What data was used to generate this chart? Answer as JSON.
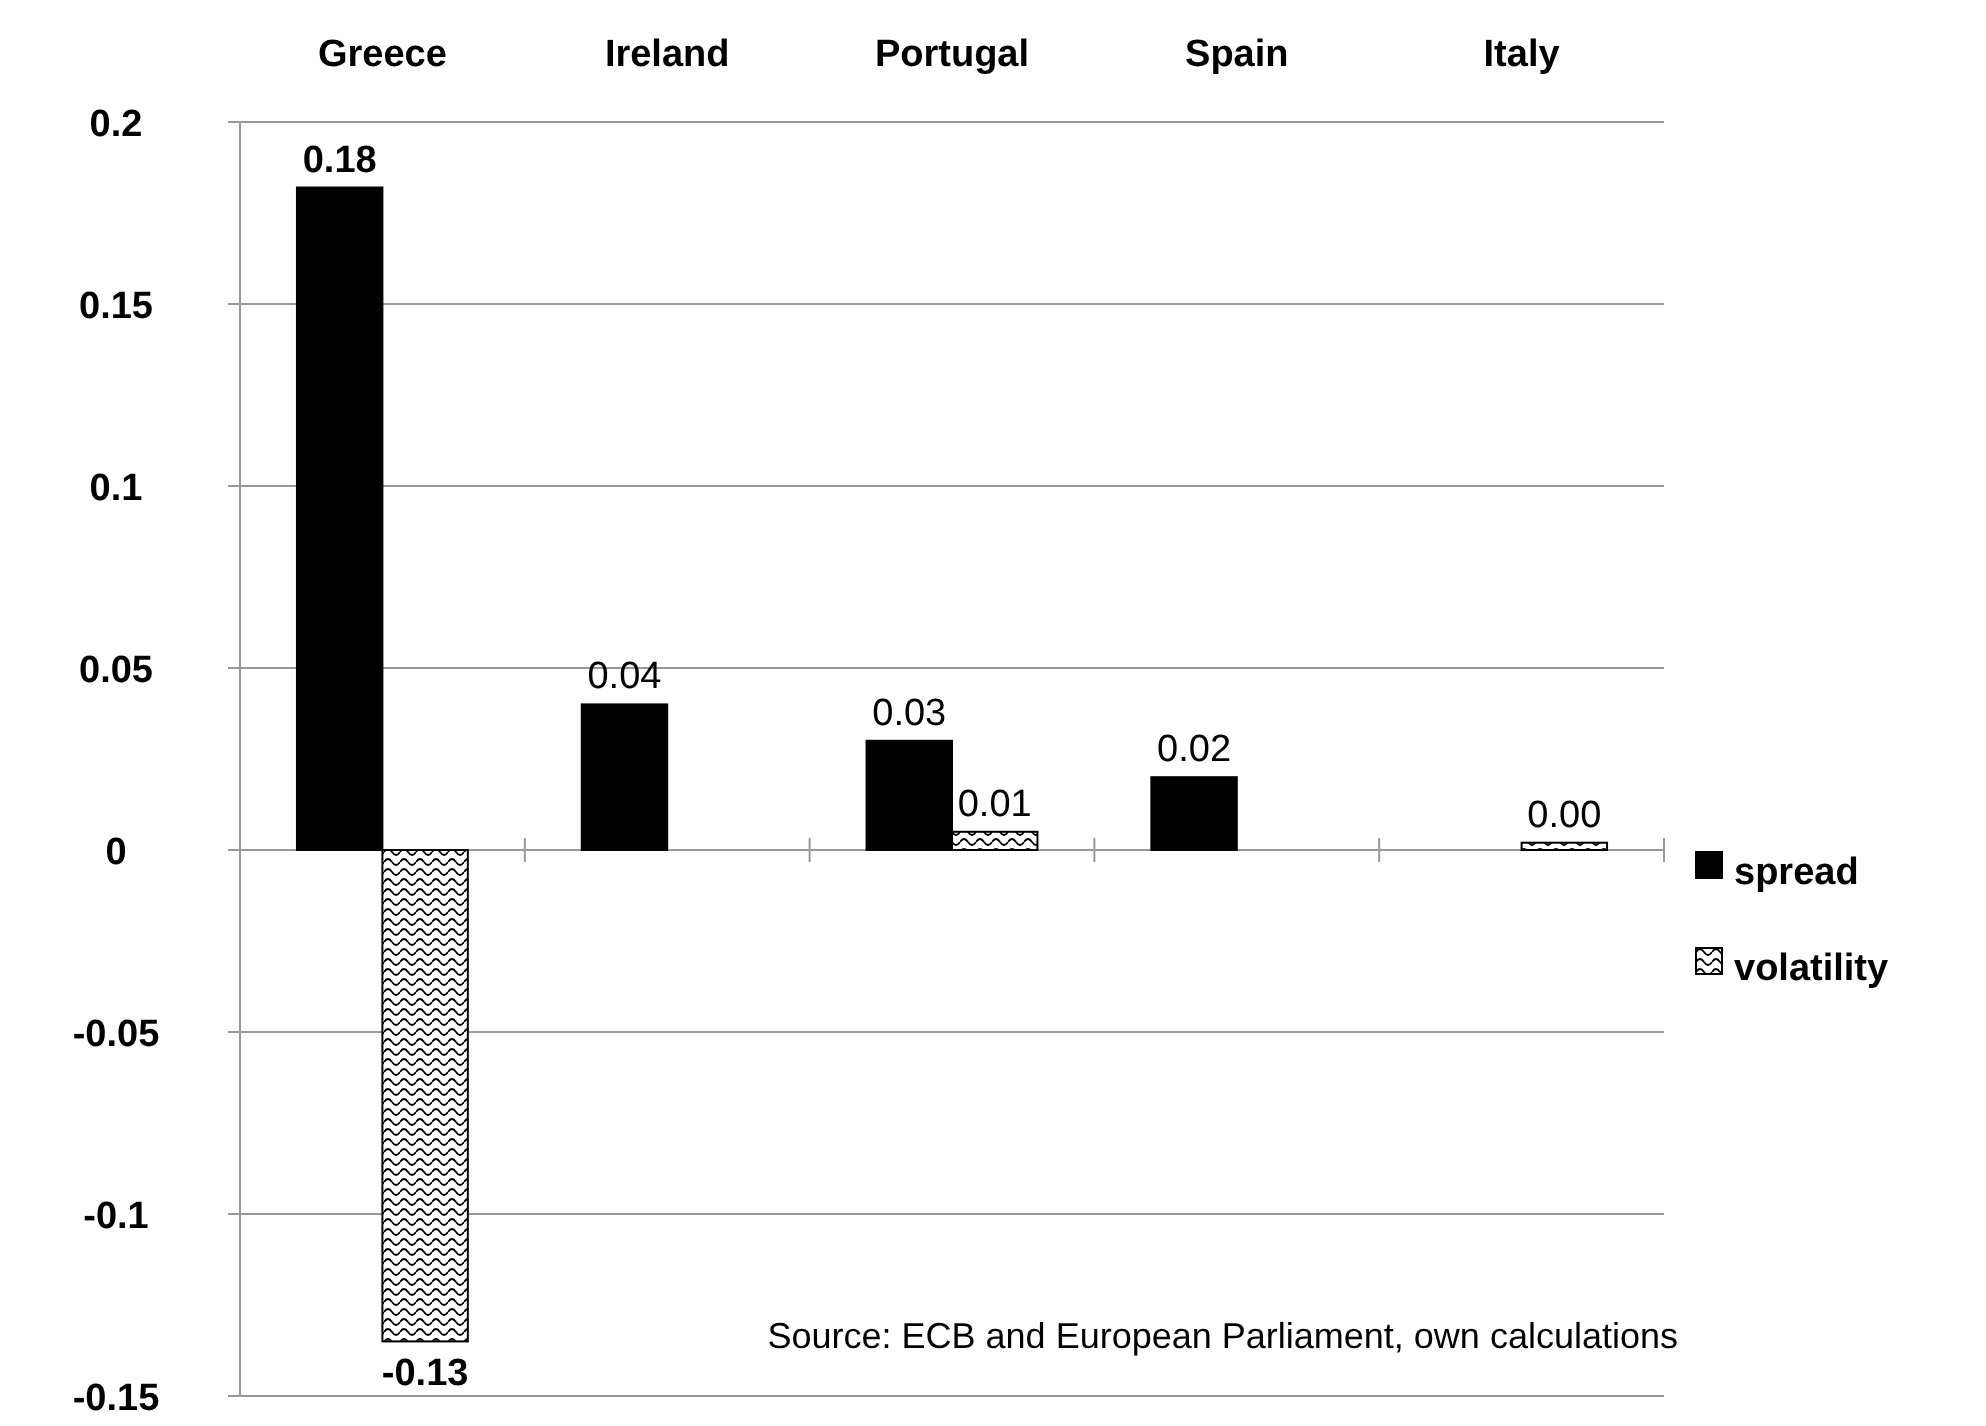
{
  "chart_data": {
    "type": "bar",
    "categories": [
      "Greece",
      "Ireland",
      "Portugal",
      "Spain",
      "Italy"
    ],
    "series": [
      {
        "name": "spread",
        "color": "#000000",
        "values": [
          0.182,
          0.04,
          0.03,
          0.02,
          null
        ],
        "value_labels": [
          "0.18",
          "0.04",
          "0.03",
          "0.02",
          null
        ]
      },
      {
        "name": "volatility",
        "color": "#000000",
        "values": [
          -0.135,
          null,
          0.005,
          null,
          0.002
        ],
        "value_labels": [
          "-0.13",
          null,
          "0.01",
          null,
          "0.00"
        ]
      }
    ],
    "ylim": [
      -0.15,
      0.2
    ],
    "yticks": [
      -0.15,
      -0.1,
      -0.05,
      0,
      0.05,
      0.1,
      0.15,
      0.2
    ],
    "grid": "y",
    "legend": "right",
    "annotations": [
      "Source: ECB and European Parliament, own calculations"
    ]
  }
}
